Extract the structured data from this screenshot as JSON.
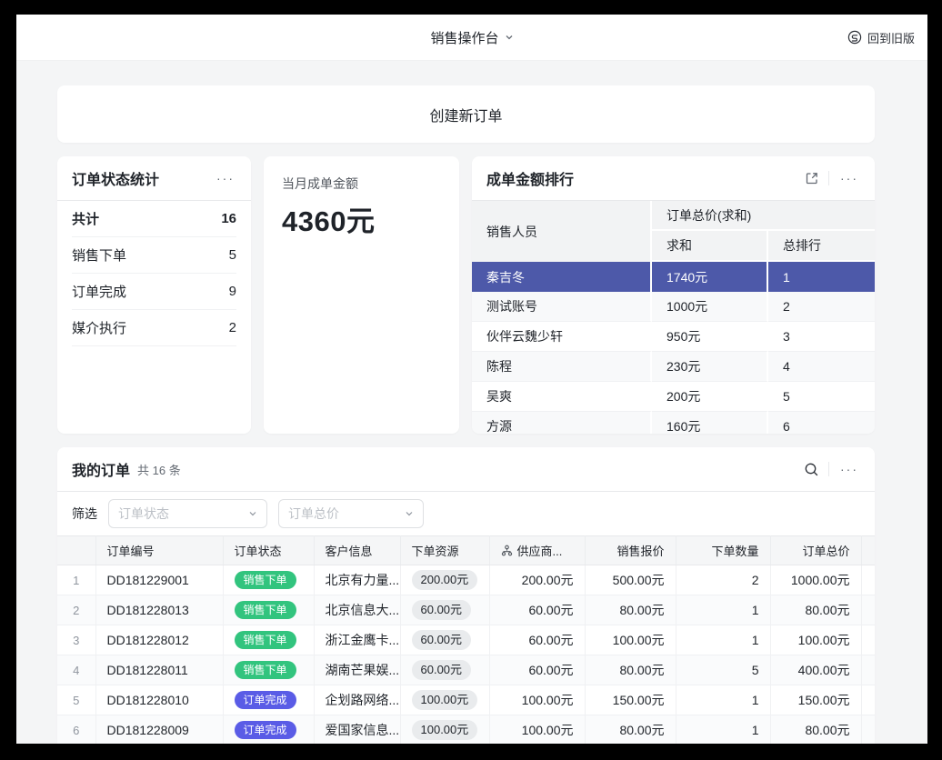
{
  "topbar": {
    "title": "销售操作台",
    "back_label": "回到旧版"
  },
  "create_card": {
    "label": "创建新订单"
  },
  "status_card": {
    "title": "订单状态统计",
    "menu": "···",
    "rows": [
      {
        "label": "共计",
        "value": "16",
        "bold": true
      },
      {
        "label": "销售下单",
        "value": "5",
        "bold": false
      },
      {
        "label": "订单完成",
        "value": "9",
        "bold": false
      },
      {
        "label": "媒介执行",
        "value": "2",
        "bold": false
      }
    ]
  },
  "amount_card": {
    "label": "当月成单金额",
    "value": "4360元"
  },
  "ranking_card": {
    "title": "成单金额排行",
    "menu": "···",
    "col_person": "销售人员",
    "col_group": "订单总价(求和)",
    "col_sum": "求和",
    "col_rank": "总排行",
    "rows": [
      {
        "name": "秦吉冬",
        "sum": "1740元",
        "rank": "1",
        "highlight": true
      },
      {
        "name": "测试账号",
        "sum": "1000元",
        "rank": "2",
        "highlight": false
      },
      {
        "name": "伙伴云魏少轩",
        "sum": "950元",
        "rank": "3",
        "highlight": false
      },
      {
        "name": "陈程",
        "sum": "230元",
        "rank": "4",
        "highlight": false
      },
      {
        "name": "吴爽",
        "sum": "200元",
        "rank": "5",
        "highlight": false
      },
      {
        "name": "方源",
        "sum": "160元",
        "rank": "6",
        "highlight": false
      }
    ]
  },
  "orders_card": {
    "title": "我的订单",
    "count": "共 16 条",
    "menu": "···",
    "filter_label": "筛选",
    "filters": [
      {
        "placeholder": "订单状态"
      },
      {
        "placeholder": "订单总价"
      }
    ],
    "columns": [
      "订单编号",
      "订单状态",
      "客户信息",
      "下单资源",
      "供应商...",
      "销售报价",
      "下单数量",
      "订单总价"
    ],
    "status_colors": {
      "销售下单": "#32c47e",
      "订单完成": "#5a5ce6"
    },
    "rows": [
      {
        "idx": "1",
        "order_no": "DD181229001",
        "status": "销售下单",
        "customer": "北京有力量...",
        "resource": "200.00元",
        "supplier": "200.00元",
        "quote": "500.00元",
        "qty": "2",
        "total": "1000.00元"
      },
      {
        "idx": "2",
        "order_no": "DD181228013",
        "status": "销售下单",
        "customer": "北京信息大...",
        "resource": "60.00元",
        "supplier": "60.00元",
        "quote": "80.00元",
        "qty": "1",
        "total": "80.00元"
      },
      {
        "idx": "3",
        "order_no": "DD181228012",
        "status": "销售下单",
        "customer": "浙江金鹰卡...",
        "resource": "60.00元",
        "supplier": "60.00元",
        "quote": "100.00元",
        "qty": "1",
        "total": "100.00元"
      },
      {
        "idx": "4",
        "order_no": "DD181228011",
        "status": "销售下单",
        "customer": "湖南芒果娱...",
        "resource": "60.00元",
        "supplier": "60.00元",
        "quote": "80.00元",
        "qty": "5",
        "total": "400.00元"
      },
      {
        "idx": "5",
        "order_no": "DD181228010",
        "status": "订单完成",
        "customer": "企划路网络...",
        "resource": "100.00元",
        "supplier": "100.00元",
        "quote": "150.00元",
        "qty": "1",
        "total": "150.00元"
      },
      {
        "idx": "6",
        "order_no": "DD181228009",
        "status": "订单完成",
        "customer": "爱国家信息...",
        "resource": "100.00元",
        "supplier": "100.00元",
        "quote": "80.00元",
        "qty": "1",
        "total": "80.00元"
      }
    ]
  },
  "colors": {
    "highlight_row": "#4d59a9",
    "badge_green": "#32c47e",
    "badge_indigo": "#5a5ce6",
    "frame": "#000000"
  }
}
